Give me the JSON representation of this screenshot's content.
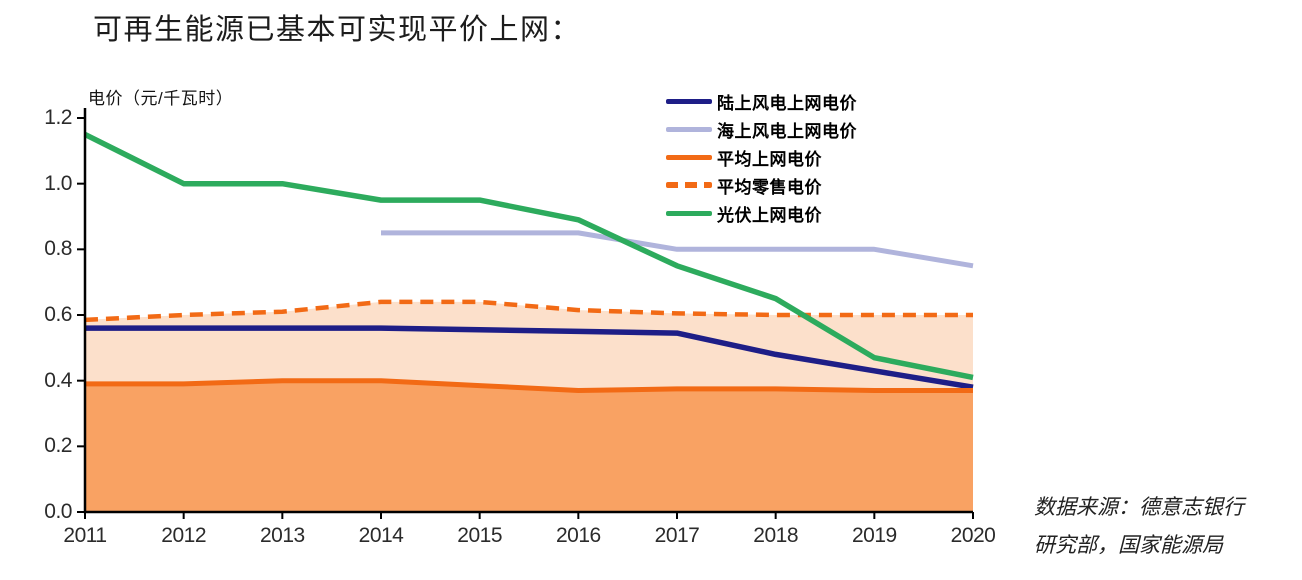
{
  "page": {
    "title": "可再生能源已基本可实现平价上网："
  },
  "axis": {
    "unit_label": "电价（元/千瓦时）",
    "y_tick_labels": [
      "0.0",
      "0.2",
      "0.4",
      "0.6",
      "0.8",
      "1.0",
      "1.2"
    ],
    "x_tick_labels": [
      "2011",
      "2012",
      "2013",
      "2014",
      "2015",
      "2016",
      "2017",
      "2018",
      "2019",
      "2020"
    ]
  },
  "legend": {
    "items": [
      {
        "label": "陆上风电上网电价"
      },
      {
        "label": "海上风电上网电价"
      },
      {
        "label": "平均上网电价"
      },
      {
        "label": "平均零售电价"
      },
      {
        "label": "光伏上网电价"
      }
    ]
  },
  "source": {
    "line1": "数据来源：德意志银行",
    "line2": "研究部，国家能源局"
  },
  "colors": {
    "onshore_wind": "#1e1e87",
    "offshore_wind": "#b0b4dc",
    "avg_grid": "#f26a15",
    "avg_retail": "#f26a15",
    "solar": "#2dab5d",
    "area_below_grid": "#f9a263",
    "area_grid_to_retail": "#fce0cb",
    "axis": "#000000"
  },
  "chart_data": {
    "type": "line",
    "title": "可再生能源已基本可实现平价上网",
    "ylabel": "电价（元/千瓦时）",
    "xlabel": "",
    "x": [
      2011,
      2012,
      2013,
      2014,
      2015,
      2016,
      2017,
      2018,
      2019,
      2020
    ],
    "ylim": [
      0,
      1.2
    ],
    "y_ticks": [
      0.0,
      0.2,
      0.4,
      0.6,
      0.8,
      1.0,
      1.2
    ],
    "grid": false,
    "legend_position": "top-right",
    "series": [
      {
        "name": "陆上风电上网电价",
        "color": "#1e1e87",
        "dash": false,
        "width": 5.5,
        "values": [
          0.56,
          0.56,
          0.56,
          0.56,
          0.555,
          0.55,
          0.545,
          0.48,
          0.43,
          0.38
        ]
      },
      {
        "name": "海上风电上网电价",
        "color": "#b0b4dc",
        "dash": false,
        "width": 5,
        "values": [
          null,
          null,
          null,
          0.85,
          0.85,
          0.85,
          0.8,
          0.8,
          0.8,
          0.75
        ]
      },
      {
        "name": "平均上网电价",
        "color": "#f26a15",
        "dash": false,
        "width": 5,
        "values": [
          0.39,
          0.39,
          0.4,
          0.4,
          0.385,
          0.37,
          0.375,
          0.375,
          0.37,
          0.37
        ]
      },
      {
        "name": "平均零售电价",
        "color": "#f26a15",
        "dash": true,
        "width": 4.5,
        "values": [
          0.585,
          0.6,
          0.61,
          0.64,
          0.64,
          0.615,
          0.605,
          0.6,
          0.6,
          0.6
        ]
      },
      {
        "name": "光伏上网电价",
        "color": "#2dab5d",
        "dash": false,
        "width": 5.5,
        "values": [
          1.15,
          1.0,
          1.0,
          0.95,
          0.95,
          0.89,
          0.75,
          0.65,
          0.47,
          0.41
        ]
      }
    ],
    "areas": [
      {
        "kind": "below",
        "series": "平均上网电价",
        "color": "#f9a263"
      },
      {
        "kind": "between",
        "upper": "平均零售电价",
        "lower": "平均上网电价",
        "color": "#fce0cb"
      }
    ],
    "source": "数据来源：德意志银行研究部，国家能源局"
  }
}
